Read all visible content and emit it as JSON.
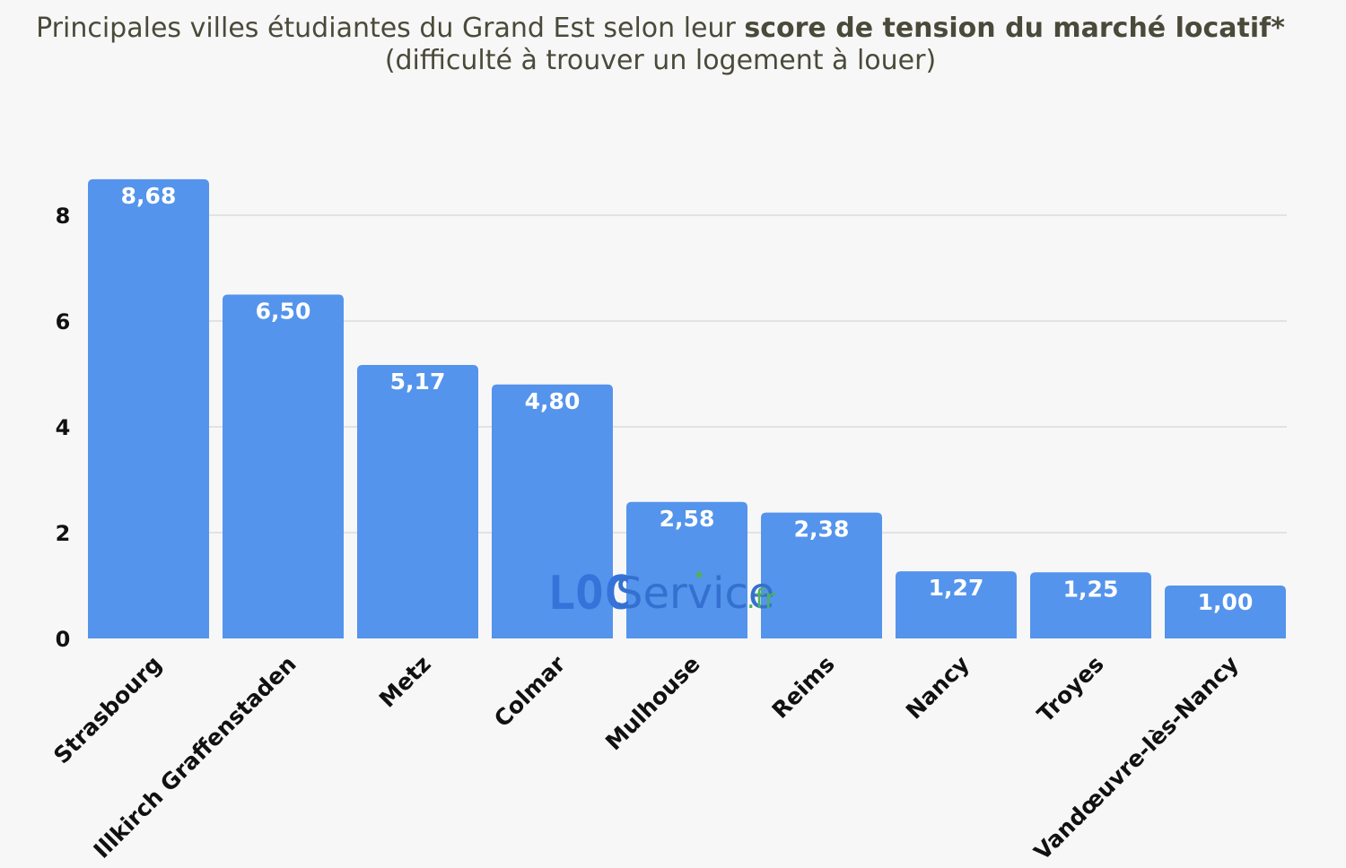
{
  "title": {
    "line1_regular": "Principales villes étudiantes du Grand Est selon leur ",
    "line1_bold": "score de tension du marché locatif*",
    "line2": "(difficulté à trouver un logement à louer)"
  },
  "watermark": {
    "loc": "LOC",
    "service": "Service",
    "tld": ".fr"
  },
  "colors": {
    "bar": "#5494ec",
    "background": "#f8f7f8",
    "grid": "#d6d6d6"
  },
  "chart_data": {
    "type": "bar",
    "categories": [
      "Strasbourg",
      "Illkirch Graffenstaden",
      "Metz",
      "Colmar",
      "Mulhouse",
      "Reims",
      "Nancy",
      "Troyes",
      "Vandœuvre-lès-Nancy"
    ],
    "values": [
      8.68,
      6.5,
      5.17,
      4.8,
      2.58,
      2.38,
      1.27,
      1.25,
      1.0
    ],
    "data_labels": [
      "8,68",
      "6,50",
      "5,17",
      "4,80",
      "2,58",
      "2,38",
      "1,27",
      "1,25",
      "1,00"
    ],
    "yticks": [
      0,
      2,
      4,
      6,
      8
    ],
    "ylim": [
      0,
      9
    ],
    "grid": true,
    "legend": "none"
  }
}
